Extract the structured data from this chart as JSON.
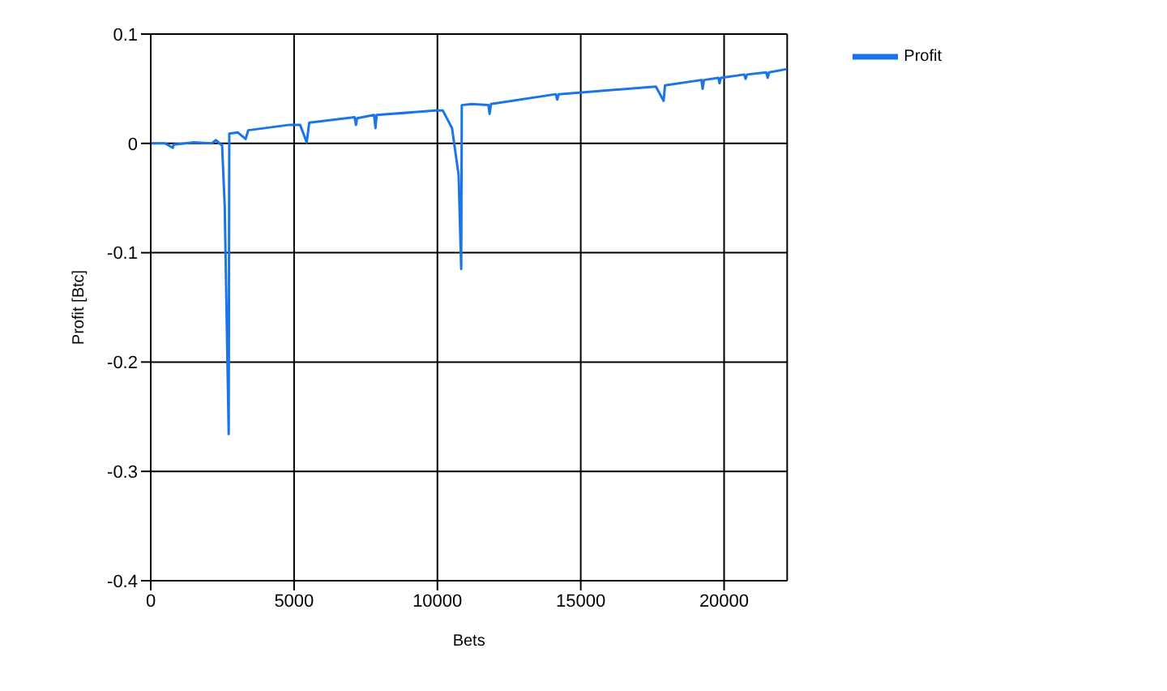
{
  "chart_data": {
    "type": "line",
    "xlabel": "Bets",
    "ylabel": "Profit [Btc]",
    "xlim": [
      0,
      22200
    ],
    "xticks": [
      0,
      5000,
      10000,
      15000,
      20000
    ],
    "ylim": [
      -0.4,
      0.1
    ],
    "yticks": [
      0.1,
      0,
      -0.1,
      -0.2,
      -0.3,
      -0.4
    ],
    "grid": true,
    "legend": "top right",
    "marker": "none",
    "line_style": "solid",
    "x": [
      0,
      500,
      770,
      800,
      1200,
      1500,
      2130,
      2270,
      2490,
      2580,
      2720,
      2740,
      3040,
      3310,
      3400,
      4850,
      5210,
      5440,
      5530,
      7110,
      7160,
      7200,
      7790,
      7840,
      7880,
      9920,
      10190,
      10510,
      10740,
      10830,
      10850,
      11190,
      11780,
      11820,
      11870,
      14130,
      14180,
      14230,
      17620,
      17890,
      17940,
      19210,
      19250,
      19300,
      19800,
      19840,
      19890,
      20700,
      20750,
      20800,
      21470,
      21520,
      21570,
      22190
    ],
    "series": [
      {
        "name": "Profit",
        "color": "#1a75e8",
        "values": [
          0,
          0,
          -0.004,
          -0.001,
          0,
          0.001,
          0,
          0.003,
          -0.002,
          -0.057,
          -0.266,
          0.009,
          0.01,
          0.004,
          0.012,
          0.017,
          0.017,
          0.001,
          0.019,
          0.024,
          0.017,
          0.023,
          0.026,
          0.014,
          0.026,
          0.03,
          0.03,
          0.014,
          -0.029,
          -0.115,
          0.035,
          0.036,
          0.035,
          0.027,
          0.036,
          0.045,
          0.04,
          0.045,
          0.052,
          0.039,
          0.053,
          0.058,
          0.05,
          0.058,
          0.06,
          0.055,
          0.06,
          0.063,
          0.059,
          0.063,
          0.065,
          0.06,
          0.065,
          0.068
        ]
      }
    ]
  }
}
